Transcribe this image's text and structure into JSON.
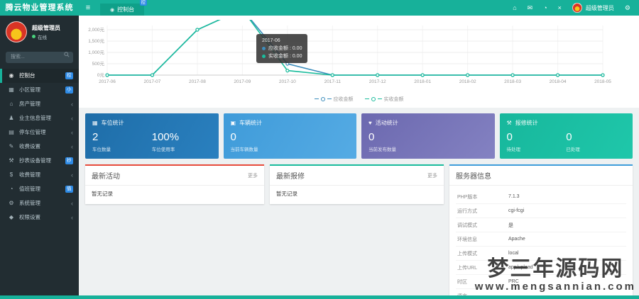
{
  "app": {
    "title": "腾云物业管理系统",
    "theme_color": "#17b19a"
  },
  "header": {
    "menu_toggle_glyph": "≡",
    "tab": {
      "label": "控制台",
      "icon_glyph": "◉",
      "badge": "控",
      "badge_color": "#2e8be6"
    },
    "icons": [
      {
        "name": "home-icon",
        "glyph": "⌂"
      },
      {
        "name": "envelope-icon",
        "glyph": "✉"
      },
      {
        "name": "history-icon",
        "glyph": "◔"
      },
      {
        "name": "fullscreen-icon",
        "glyph": "×"
      }
    ],
    "user_name": "超级管理员",
    "settings_icon": {
      "name": "gear-icon",
      "glyph": "⚙"
    }
  },
  "sidebar": {
    "user": {
      "name": "超级管理员",
      "status": "在线"
    },
    "search_placeholder": "搜索...",
    "badge_color": "#2e8be6",
    "menu": [
      {
        "name": "sidebar-item-dashboard",
        "icon": "dashboard-icon",
        "glyph": "◉",
        "label": "控制台",
        "badge": "控",
        "active": true
      },
      {
        "name": "sidebar-item-community",
        "icon": "community-icon",
        "glyph": "▦",
        "label": "小区管理",
        "badge": "小"
      },
      {
        "name": "sidebar-item-property",
        "icon": "house-icon",
        "glyph": "⌂",
        "label": "房产管理",
        "chevron": "‹"
      },
      {
        "name": "sidebar-item-owner",
        "icon": "user-icon",
        "glyph": "♟",
        "label": "业主信息管理",
        "chevron": "‹"
      },
      {
        "name": "sidebar-item-parking",
        "icon": "parking-icon",
        "glyph": "▤",
        "label": "停车位管理",
        "chevron": "‹"
      },
      {
        "name": "sidebar-item-fee-settings",
        "icon": "edit-icon",
        "glyph": "✎",
        "label": "收费设置",
        "chevron": "‹"
      },
      {
        "name": "sidebar-item-meter-devices",
        "icon": "wrench-icon",
        "glyph": "⚒",
        "label": "抄表设备管理",
        "badge": "抄"
      },
      {
        "name": "sidebar-item-charges",
        "icon": "dollar-icon",
        "glyph": "$",
        "label": "收费管理",
        "chevron": "‹"
      },
      {
        "name": "sidebar-item-duty",
        "icon": "clock-icon",
        "glyph": "◔",
        "label": "值班管理",
        "badge": "值"
      },
      {
        "name": "sidebar-item-system",
        "icon": "gears-icon",
        "glyph": "⚙",
        "label": "系统管理",
        "chevron": "‹"
      },
      {
        "name": "sidebar-item-permissions",
        "icon": "shield-icon",
        "glyph": "◆",
        "label": "权限设置",
        "chevron": "‹"
      }
    ]
  },
  "chart_data": {
    "type": "line",
    "x": [
      "2017-06",
      "2017-07",
      "2017-08",
      "2017-09",
      "2017-10",
      "2017-11",
      "2017-12",
      "2018-01",
      "2018-02",
      "2018-03",
      "2018-04",
      "2018-05"
    ],
    "y_ticks": [
      {
        "label": "0元",
        "value": 0
      },
      {
        "label": "500元",
        "value": 500
      },
      {
        "label": "1,000元",
        "value": 1000
      },
      {
        "label": "1,500元",
        "value": 1500
      },
      {
        "label": "2,000元",
        "value": 2000
      }
    ],
    "ylim_visible": [
      0,
      2000
    ],
    "note": "series peak between 2017-08 and 2017-10 exceeds the visible axis and is clipped at the plot top",
    "series": [
      {
        "name": "应收金额",
        "color": "#3c8dbc",
        "values": [
          0,
          0,
          2000,
          2900,
          500,
          0,
          0,
          0,
          0,
          0,
          0,
          0
        ]
      },
      {
        "name": "实收金额",
        "color": "#1abc9c",
        "values": [
          0,
          0,
          2000,
          2900,
          200,
          0,
          0,
          0,
          0,
          0,
          0,
          0
        ]
      }
    ],
    "legend": [
      "应收金额",
      "实收金额"
    ],
    "legend_position": "bottom-center",
    "grid": true,
    "tooltip": {
      "title": "2017-06",
      "rows": [
        {
          "label": "应收金额",
          "value": "0.00",
          "color": "#3c8dbc"
        },
        {
          "label": "实收金额",
          "value": "0.00",
          "color": "#1abc9c"
        }
      ]
    }
  },
  "cards": [
    {
      "name": "parking-stats-card",
      "icon": "grid-icon",
      "glyph": "▦",
      "title": "车位统计",
      "background": "linear-gradient(120deg,#1e6da8,#2a80bf)",
      "stats": [
        {
          "value": "2",
          "label": "车位数量"
        },
        {
          "value": "100%",
          "label": "车位使用率"
        }
      ]
    },
    {
      "name": "vehicle-stats-card",
      "icon": "car-icon",
      "glyph": "▣",
      "title": "车辆统计",
      "background": "linear-gradient(120deg,#3f9bd9,#55abe4)",
      "stats": [
        {
          "value": "0",
          "label": "当前车辆数量"
        }
      ]
    },
    {
      "name": "activity-stats-card",
      "icon": "heart-icon",
      "glyph": "♥",
      "title": "活动统计",
      "background": "linear-gradient(135deg,#6b68af,#8482c2)",
      "stats": [
        {
          "value": "0",
          "label": "当前发布数量"
        }
      ]
    },
    {
      "name": "repair-stats-card",
      "icon": "wrench-icon",
      "glyph": "⚒",
      "title": "报修统计",
      "background": "linear-gradient(120deg,#17b79c,#1fc7aa)",
      "stats": [
        {
          "value": "0",
          "label": "待处理"
        },
        {
          "value": "0",
          "label": "已处理"
        }
      ]
    }
  ],
  "panels": {
    "activity": {
      "title": "最新活动",
      "more": "更多",
      "empty": "暂无记录",
      "accent": "#e74c3c"
    },
    "repair": {
      "title": "最新报修",
      "more": "更多",
      "empty": "暂无记录",
      "accent": "#1abc9c"
    },
    "server": {
      "title": "服务器信息",
      "accent": "#3f9edb",
      "rows": [
        {
          "label": "PHP版本",
          "value": "7.1.3"
        },
        {
          "label": "运行方式",
          "value": "cgi-fcgi"
        },
        {
          "label": "调试模式",
          "value": "是"
        },
        {
          "label": "环境信息",
          "value": "Apache"
        },
        {
          "label": "上传模式",
          "value": "local"
        },
        {
          "label": "上传URL",
          "value": "app/upload"
        },
        {
          "label": "时区",
          "value": "PRC"
        },
        {
          "label": "语言",
          "value": ""
        }
      ]
    }
  },
  "watermark": {
    "line1": "梦三年源码网",
    "line2": "www.mengsannian.com"
  }
}
